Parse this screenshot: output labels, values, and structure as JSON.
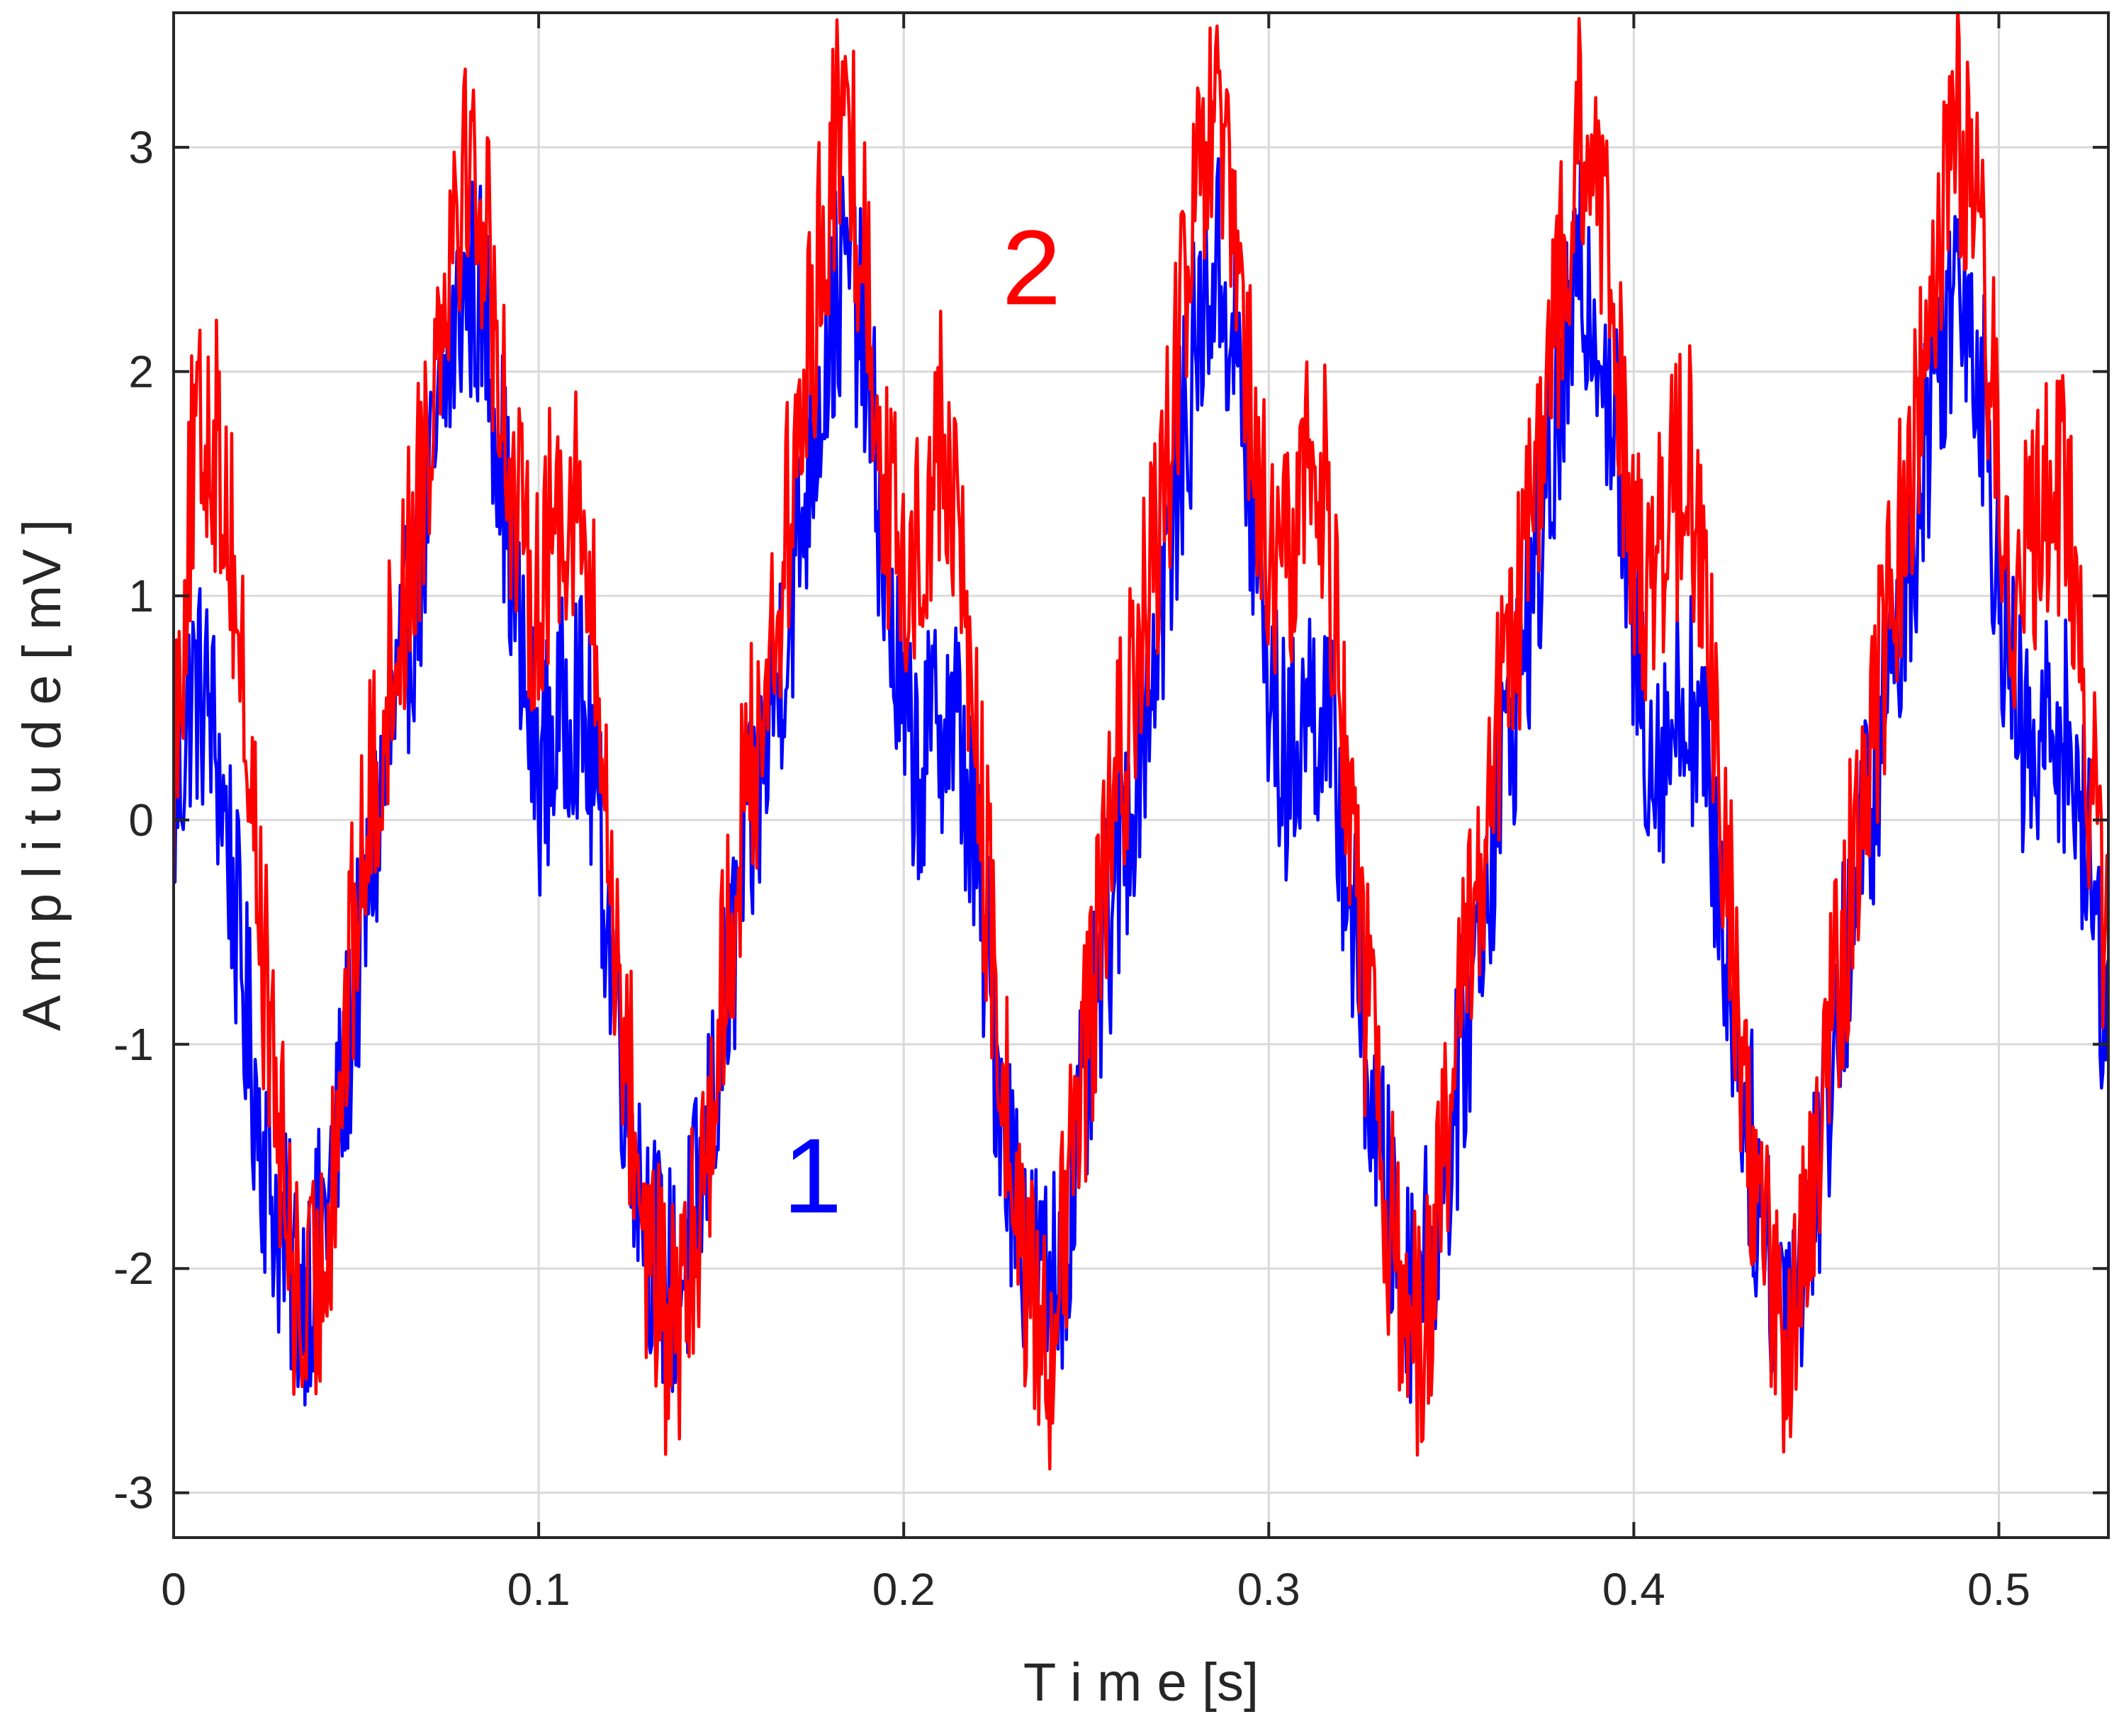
{
  "chart_data": {
    "type": "line",
    "title": "",
    "xlabel": "T i m e [s]",
    "ylabel": "A m p l i t u d e [ mV ]",
    "xlim": [
      0,
      0.53
    ],
    "ylim": [
      -3.2,
      3.6
    ],
    "xticks": [
      0,
      0.1,
      0.2,
      0.3,
      0.4,
      0.5
    ],
    "xtick_labels": [
      "0",
      "0.1",
      "0.2",
      "0.3",
      "0.4",
      "0.5"
    ],
    "yticks": [
      -3,
      -2,
      -1,
      0,
      1,
      2,
      3
    ],
    "ytick_labels": [
      "-3",
      "-2",
      "-1",
      "0",
      "1",
      "2",
      "3"
    ],
    "grid": true,
    "series": [
      {
        "name": "1",
        "color": "#0000ff",
        "x": [
          0,
          0.005,
          0.01,
          0.015,
          0.02,
          0.025,
          0.03,
          0.035,
          0.04,
          0.045,
          0.05,
          0.055,
          0.06,
          0.065,
          0.07,
          0.075,
          0.08,
          0.085,
          0.09,
          0.095,
          0.1,
          0.105,
          0.11,
          0.115,
          0.12,
          0.125,
          0.13,
          0.135,
          0.14,
          0.145,
          0.15,
          0.155,
          0.16,
          0.165,
          0.17,
          0.175,
          0.18,
          0.185,
          0.19,
          0.195,
          0.2,
          0.205,
          0.21,
          0.215,
          0.22,
          0.225,
          0.23,
          0.235,
          0.24,
          0.245,
          0.25,
          0.255,
          0.26,
          0.265,
          0.27,
          0.275,
          0.28,
          0.285,
          0.29,
          0.295,
          0.3,
          0.305,
          0.31,
          0.315,
          0.32,
          0.325,
          0.33,
          0.335,
          0.34,
          0.345,
          0.35,
          0.355,
          0.36,
          0.365,
          0.37,
          0.375,
          0.38,
          0.385,
          0.39,
          0.395,
          0.4,
          0.405,
          0.41,
          0.415,
          0.42,
          0.425,
          0.43,
          0.435,
          0.44,
          0.445,
          0.45,
          0.455,
          0.46,
          0.465,
          0.47,
          0.475,
          0.48,
          0.485,
          0.49,
          0.495,
          0.5,
          0.505,
          0.51,
          0.515,
          0.52,
          0.525,
          0.53
        ],
        "y": [
          0.0,
          0.6,
          0.5,
          -0.1,
          -0.9,
          -1.5,
          -1.9,
          -2.1,
          -1.9,
          -1.4,
          -0.7,
          -0.1,
          0.4,
          0.9,
          1.4,
          2.0,
          2.4,
          2.3,
          1.6,
          0.7,
          0.2,
          0.4,
          0.6,
          0.2,
          -0.6,
          -1.3,
          -1.8,
          -2.1,
          -2.0,
          -1.6,
          -1.0,
          -0.4,
          0.1,
          0.6,
          1.1,
          1.7,
          2.2,
          2.5,
          2.0,
          1.1,
          0.4,
          0.2,
          0.5,
          0.4,
          -0.2,
          -1.0,
          -1.6,
          -2.0,
          -2.1,
          -1.8,
          -1.2,
          -0.6,
          -0.1,
          0.4,
          0.9,
          1.5,
          2.1,
          2.5,
          2.2,
          1.4,
          0.6,
          0.2,
          0.5,
          0.5,
          0.0,
          -0.8,
          -1.5,
          -1.9,
          -2.1,
          -1.9,
          -1.4,
          -0.8,
          -0.2,
          0.3,
          0.8,
          1.3,
          1.9,
          2.4,
          2.3,
          1.7,
          0.8,
          0.3,
          0.4,
          0.6,
          0.2,
          -0.5,
          -1.2,
          -1.8,
          -2.1,
          -2.0,
          -1.6,
          -1.0,
          -0.4,
          0.1,
          0.6,
          1.1,
          1.7,
          2.2,
          2.5,
          2.0,
          1.1,
          0.4,
          0.2,
          0.5,
          0.3,
          -0.3,
          -0.9
        ]
      },
      {
        "name": "2",
        "color": "#ff0000",
        "x": [
          0,
          0.005,
          0.01,
          0.015,
          0.02,
          0.025,
          0.03,
          0.035,
          0.04,
          0.045,
          0.05,
          0.055,
          0.06,
          0.065,
          0.07,
          0.075,
          0.08,
          0.085,
          0.09,
          0.095,
          0.1,
          0.105,
          0.11,
          0.115,
          0.12,
          0.125,
          0.13,
          0.135,
          0.14,
          0.145,
          0.15,
          0.155,
          0.16,
          0.165,
          0.17,
          0.175,
          0.18,
          0.185,
          0.19,
          0.195,
          0.2,
          0.205,
          0.21,
          0.215,
          0.22,
          0.225,
          0.23,
          0.235,
          0.24,
          0.245,
          0.25,
          0.255,
          0.26,
          0.265,
          0.27,
          0.275,
          0.28,
          0.285,
          0.29,
          0.295,
          0.3,
          0.305,
          0.31,
          0.315,
          0.32,
          0.325,
          0.33,
          0.335,
          0.34,
          0.345,
          0.35,
          0.355,
          0.36,
          0.365,
          0.37,
          0.375,
          0.38,
          0.385,
          0.39,
          0.395,
          0.4,
          0.405,
          0.41,
          0.415,
          0.42,
          0.425,
          0.43,
          0.435,
          0.44,
          0.445,
          0.45,
          0.455,
          0.46,
          0.465,
          0.47,
          0.475,
          0.48,
          0.485,
          0.49,
          0.495,
          0.5,
          0.505,
          0.51,
          0.515,
          0.52,
          0.525,
          0.53
        ],
        "y": [
          0.3,
          1.5,
          1.8,
          1.4,
          0.4,
          -0.7,
          -1.6,
          -2.3,
          -2.1,
          -1.3,
          -0.4,
          0.2,
          0.7,
          1.2,
          1.8,
          2.6,
          3.0,
          2.7,
          1.9,
          1.2,
          1.0,
          1.4,
          1.5,
          0.8,
          -0.3,
          -1.2,
          -1.9,
          -2.3,
          -2.2,
          -1.6,
          -0.8,
          -0.1,
          0.4,
          0.9,
          1.5,
          2.2,
          2.9,
          3.1,
          2.4,
          1.5,
          1.0,
          1.3,
          1.7,
          1.3,
          0.3,
          -0.8,
          -1.6,
          -2.2,
          -2.3,
          -1.8,
          -1.0,
          -0.3,
          0.3,
          0.8,
          1.3,
          2.0,
          2.7,
          3.1,
          2.6,
          1.8,
          1.1,
          1.1,
          1.6,
          1.5,
          0.6,
          -0.5,
          -1.4,
          -2.0,
          -2.3,
          -2.0,
          -1.3,
          -0.5,
          0.1,
          0.6,
          1.1,
          1.7,
          2.4,
          3.0,
          2.8,
          2.1,
          1.3,
          1.0,
          1.4,
          1.6,
          0.9,
          -0.2,
          -1.1,
          -1.8,
          -2.3,
          -2.2,
          -1.6,
          -0.8,
          -0.2,
          0.4,
          0.9,
          1.5,
          2.2,
          2.9,
          3.1,
          2.5,
          1.6,
          1.0,
          1.2,
          1.6,
          1.2,
          0.2,
          -0.6
        ]
      }
    ],
    "annotations": [
      {
        "text": "1",
        "x": 0.175,
        "y": -1.75,
        "color": "#0000ff"
      },
      {
        "text": "2",
        "x": 0.235,
        "y": 2.3,
        "color": "#ff0000"
      }
    ]
  }
}
